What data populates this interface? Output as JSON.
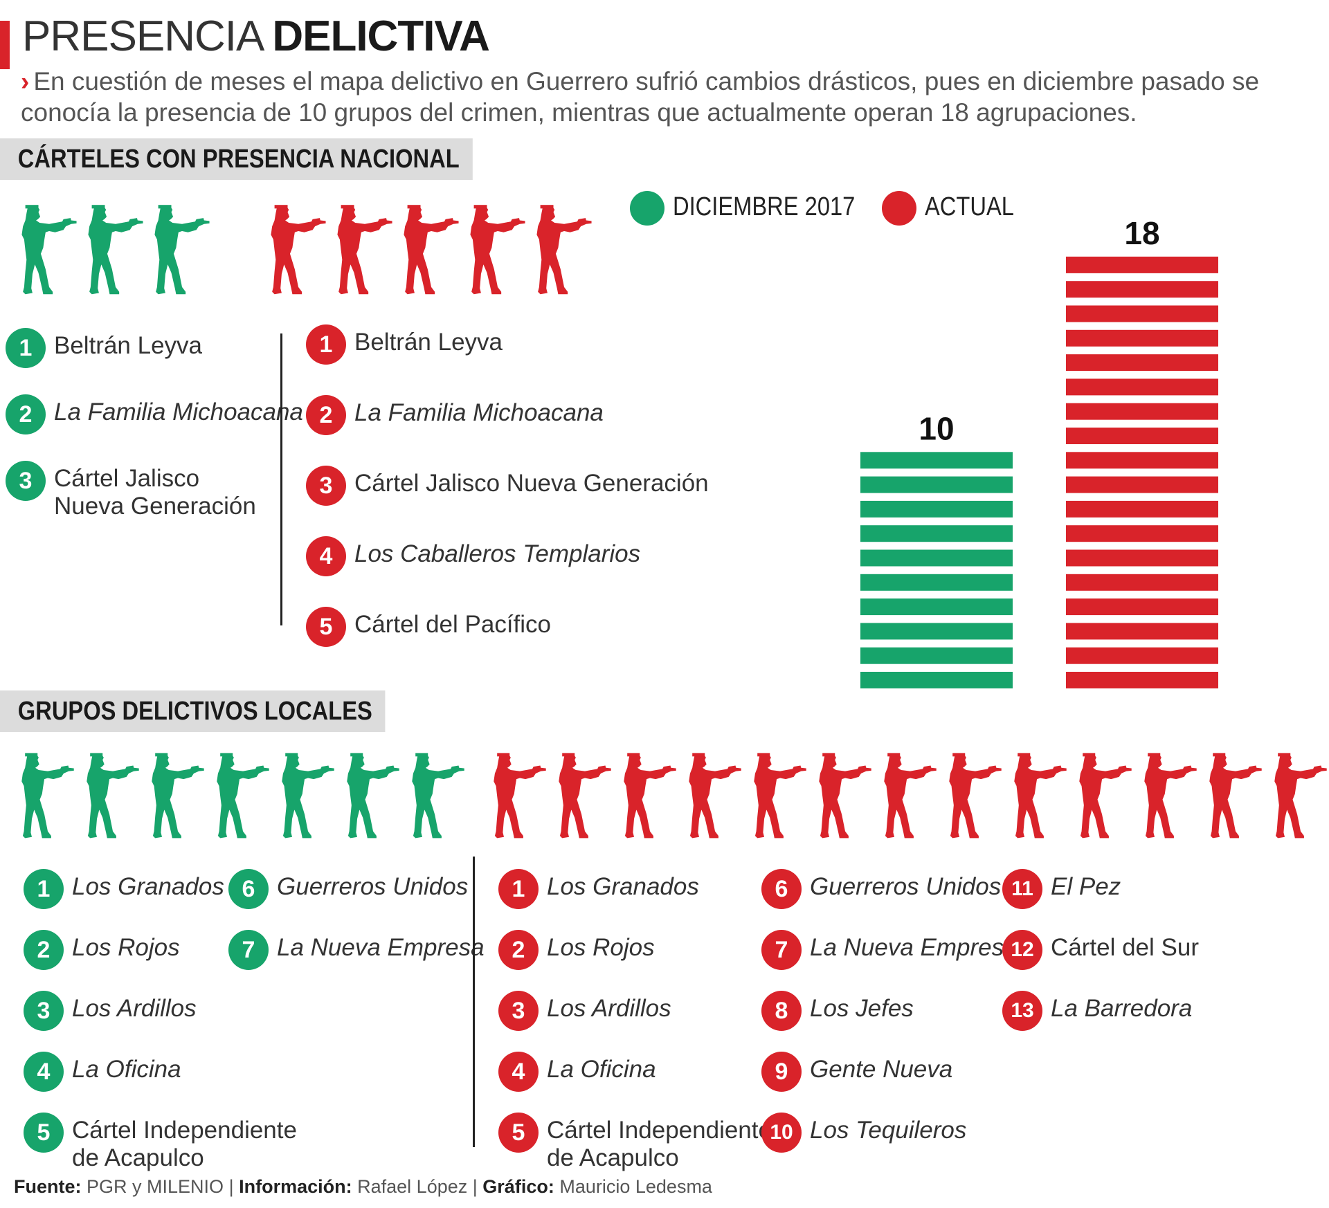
{
  "header": {
    "title_light": "PRESENCIA",
    "title_bold": "DELICTIVA",
    "arrow": "›",
    "subtitle": "En cuestión de meses el mapa delictivo en Guerrero sufrió cambios drásticos, pues en diciembre pasado se conocía la presencia de 10 grupos del crimen, mientras que actualmente operan 18 agrupaciones."
  },
  "colors": {
    "green": "#17a46b",
    "red": "#d9232a",
    "accent": "#d9232a",
    "section_bg": "#dcdcdc"
  },
  "icons": {
    "figure": "gunman-silhouette-icon",
    "badge": "number-circle"
  },
  "section_national": {
    "heading": "CÁRTELES CON PRESENCIA NACIONAL",
    "dec2017": [
      {
        "n": "1",
        "name": "Beltrán Leyva",
        "italic": false
      },
      {
        "n": "2",
        "name": "La Familia Michoacana",
        "italic": true
      },
      {
        "n": "3",
        "name": "Cártel Jalisco\nNueva Generación",
        "italic": false
      }
    ],
    "actual": [
      {
        "n": "1",
        "name": "Beltrán Leyva",
        "italic": false
      },
      {
        "n": "2",
        "name": "La Familia Michoacana",
        "italic": true
      },
      {
        "n": "3",
        "name": "Cártel Jalisco Nueva Generación",
        "italic": false
      },
      {
        "n": "4",
        "name": "Los Caballeros Templarios",
        "italic": true
      },
      {
        "n": "5",
        "name": "Cártel del Pacífico",
        "italic": false
      }
    ]
  },
  "section_local": {
    "heading": "GRUPOS DELICTIVOS LOCALES",
    "dec2017": [
      {
        "n": "1",
        "name": "Los Granados",
        "italic": true
      },
      {
        "n": "2",
        "name": "Los Rojos",
        "italic": true
      },
      {
        "n": "3",
        "name": "Los Ardillos",
        "italic": true
      },
      {
        "n": "4",
        "name": "La Oficina",
        "italic": true
      },
      {
        "n": "5",
        "name": "Cártel Independiente\nde Acapulco",
        "italic": false
      },
      {
        "n": "6",
        "name": "Guerreros Unidos",
        "italic": true
      },
      {
        "n": "7",
        "name": "La Nueva Empresa",
        "italic": true
      }
    ],
    "actual": [
      {
        "n": "1",
        "name": "Los Granados",
        "italic": true
      },
      {
        "n": "2",
        "name": "Los Rojos",
        "italic": true
      },
      {
        "n": "3",
        "name": "Los Ardillos",
        "italic": true
      },
      {
        "n": "4",
        "name": "La Oficina",
        "italic": true
      },
      {
        "n": "5",
        "name": "Cártel Independiente\nde Acapulco",
        "italic": false
      },
      {
        "n": "6",
        "name": "Guerreros Unidos",
        "italic": true
      },
      {
        "n": "7",
        "name": "La Nueva Empresa",
        "italic": true
      },
      {
        "n": "8",
        "name": "Los Jefes",
        "italic": true
      },
      {
        "n": "9",
        "name": "Gente Nueva",
        "italic": true
      },
      {
        "n": "10",
        "name": "Los Tequileros",
        "italic": true
      },
      {
        "n": "11",
        "name": "El Pez",
        "italic": true
      },
      {
        "n": "12",
        "name": "Cártel del Sur",
        "italic": false
      },
      {
        "n": "13",
        "name": "La Barredora",
        "italic": true
      }
    ]
  },
  "chart_data": {
    "type": "bar",
    "categories": [
      "DICIEMBRE 2017",
      "ACTUAL"
    ],
    "values": [
      10,
      18
    ],
    "colors": [
      "#17a46b",
      "#d9232a"
    ],
    "legend": [
      "DICIEMBRE 2017",
      "ACTUAL"
    ],
    "legend_position": "top",
    "data_labels": [
      "10",
      "18"
    ],
    "title": "",
    "xlabel": "",
    "ylabel": "",
    "ylim": [
      0,
      18
    ]
  },
  "footer": {
    "fuente_label": "Fuente:",
    "fuente": "PGR y MILENIO",
    "info_label": "Información:",
    "info": "Rafael López",
    "grafico_label": "Gráfico:",
    "grafico": "Mauricio Ledesma",
    "sep": "|"
  }
}
